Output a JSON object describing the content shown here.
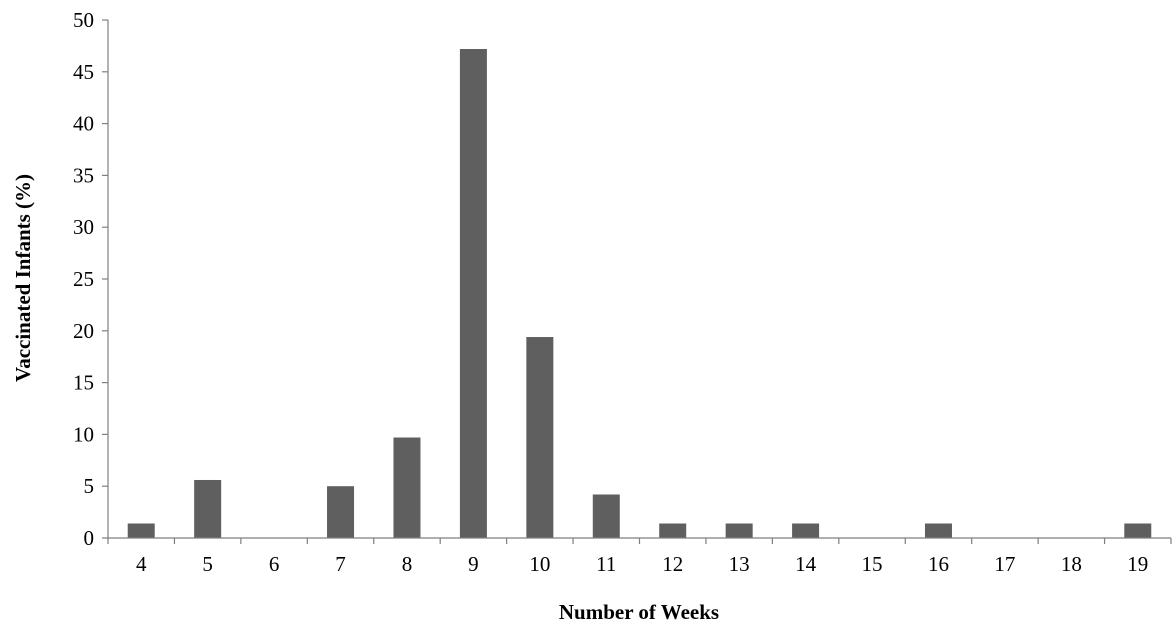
{
  "chart_data": {
    "type": "bar",
    "title": "",
    "xlabel": "Number of Weeks",
    "ylabel": "Vaccinated Infants (%)",
    "categories": [
      "4",
      "5",
      "6",
      "7",
      "8",
      "9",
      "10",
      "11",
      "12",
      "13",
      "14",
      "15",
      "16",
      "17",
      "18",
      "19"
    ],
    "values": [
      1.4,
      5.6,
      0,
      5.0,
      9.7,
      47.2,
      19.4,
      4.2,
      1.4,
      1.4,
      1.4,
      0,
      1.4,
      0,
      0,
      1.4
    ],
    "ylim": [
      0,
      50
    ],
    "yticks": [
      0,
      5,
      10,
      15,
      20,
      25,
      30,
      35,
      40,
      45,
      50
    ],
    "grid": false,
    "legend": "none",
    "bar_color": "#5f5f5f",
    "axis_color": "#7f7f7f"
  }
}
